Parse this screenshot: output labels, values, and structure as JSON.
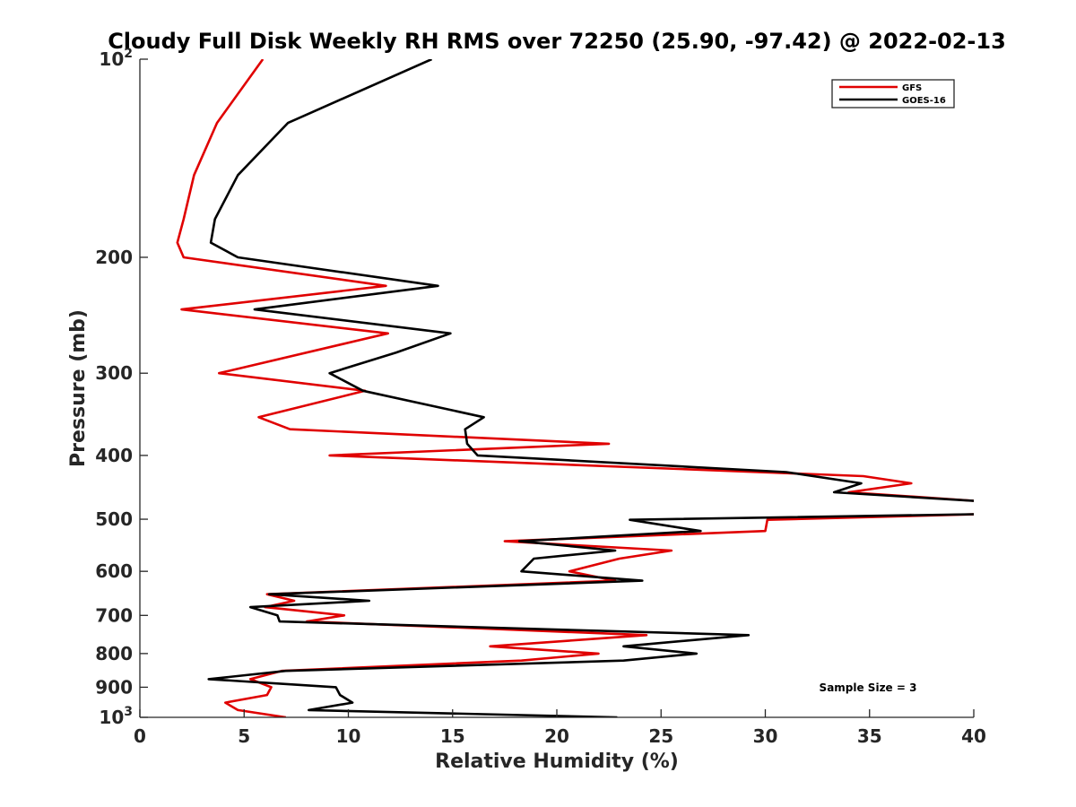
{
  "chart_data": {
    "type": "line",
    "title": "Cloudy Full Disk Weekly RH RMS over 72250 (25.90, -97.42) @ 2022-02-13",
    "xlabel": "Relative Humidity (%)",
    "ylabel": "Pressure (mb)",
    "xlim": [
      0,
      40
    ],
    "ylim": [
      100,
      1000
    ],
    "y_scale": "log",
    "y_reversed": true,
    "x_ticks": [
      "0",
      "5",
      "10",
      "15",
      "20",
      "25",
      "30",
      "35",
      "40"
    ],
    "y_ticks": [
      {
        "value": 100,
        "base": "10",
        "exp": "2"
      },
      {
        "value": 200,
        "label": "200"
      },
      {
        "value": 300,
        "label": "300"
      },
      {
        "value": 400,
        "label": "400"
      },
      {
        "value": 500,
        "label": "500"
      },
      {
        "value": 600,
        "label": "600"
      },
      {
        "value": 700,
        "label": "700"
      },
      {
        "value": 800,
        "label": "800"
      },
      {
        "value": 900,
        "label": "900"
      },
      {
        "value": 1000,
        "base": "10",
        "exp": "3"
      }
    ],
    "legend": "top-right",
    "grid": false,
    "annotation": "Sample Size = 3",
    "series": [
      {
        "name": "GFS",
        "color": "#e00000",
        "points": [
          [
            5.9,
            100
          ],
          [
            3.7,
            125
          ],
          [
            2.6,
            150
          ],
          [
            2.1,
            175
          ],
          [
            1.8,
            190
          ],
          [
            2.1,
            200
          ],
          [
            11.8,
            221
          ],
          [
            2.0,
            240
          ],
          [
            11.9,
            261
          ],
          [
            3.8,
            300
          ],
          [
            10.8,
            319
          ],
          [
            5.7,
            350
          ],
          [
            7.2,
            365
          ],
          [
            22.5,
            384
          ],
          [
            9.1,
            400
          ],
          [
            34.7,
            430
          ],
          [
            37.0,
            441
          ],
          [
            34.0,
            455
          ],
          [
            40.5,
            470
          ],
          [
            40.5,
            491
          ],
          [
            30.1,
            501
          ],
          [
            30.0,
            521
          ],
          [
            17.5,
            540
          ],
          [
            25.5,
            558
          ],
          [
            23.0,
            574
          ],
          [
            20.6,
            600
          ],
          [
            22.8,
            620
          ],
          [
            6.1,
            650
          ],
          [
            7.4,
            665
          ],
          [
            6.0,
            680
          ],
          [
            9.8,
            700
          ],
          [
            8.0,
            715
          ],
          [
            24.3,
            750
          ],
          [
            16.8,
            780
          ],
          [
            22.0,
            800
          ],
          [
            18.3,
            820
          ],
          [
            6.8,
            850
          ],
          [
            5.3,
            875
          ],
          [
            6.3,
            900
          ],
          [
            6.1,
            925
          ],
          [
            4.1,
            950
          ],
          [
            4.7,
            975
          ],
          [
            7.0,
            1000
          ]
        ]
      },
      {
        "name": "GOES-16",
        "color": "#000000",
        "points": [
          [
            14.0,
            100
          ],
          [
            7.1,
            125
          ],
          [
            4.7,
            150
          ],
          [
            3.6,
            175
          ],
          [
            3.4,
            190
          ],
          [
            4.7,
            200
          ],
          [
            14.3,
            221
          ],
          [
            5.5,
            240
          ],
          [
            14.9,
            261
          ],
          [
            12.3,
            279
          ],
          [
            9.1,
            300
          ],
          [
            10.7,
            319
          ],
          [
            16.5,
            350
          ],
          [
            15.6,
            365
          ],
          [
            15.7,
            384
          ],
          [
            16.2,
            400
          ],
          [
            31.0,
            424
          ],
          [
            34.6,
            441
          ],
          [
            33.3,
            455
          ],
          [
            40.5,
            470
          ],
          [
            40.5,
            491
          ],
          [
            23.5,
            501
          ],
          [
            26.9,
            521
          ],
          [
            18.2,
            540
          ],
          [
            22.8,
            558
          ],
          [
            18.9,
            574
          ],
          [
            18.3,
            600
          ],
          [
            24.1,
            620
          ],
          [
            6.2,
            650
          ],
          [
            11.0,
            665
          ],
          [
            5.3,
            680
          ],
          [
            6.6,
            700
          ],
          [
            6.7,
            715
          ],
          [
            29.2,
            750
          ],
          [
            23.2,
            780
          ],
          [
            26.7,
            800
          ],
          [
            23.2,
            820
          ],
          [
            7.0,
            850
          ],
          [
            3.3,
            875
          ],
          [
            9.4,
            900
          ],
          [
            9.6,
            925
          ],
          [
            10.2,
            950
          ],
          [
            8.1,
            975
          ],
          [
            22.9,
            1000
          ]
        ]
      }
    ]
  }
}
